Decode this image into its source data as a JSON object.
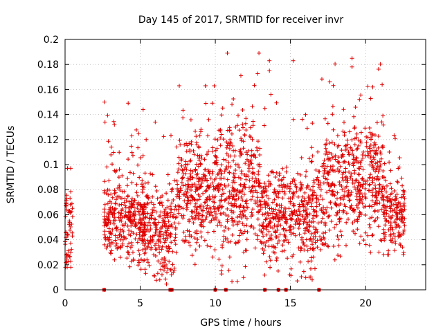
{
  "colors": {
    "points": "#e00000",
    "axis": "#000000",
    "grid": "#b8b8b8"
  },
  "chart_data": {
    "type": "scatter",
    "title": "Day 145 of 2017, SRMTID for receiver invr",
    "xlabel": "GPS time / hours",
    "ylabel": "SRMTID / TECUs",
    "xlim": [
      0,
      24
    ],
    "ylim": [
      0,
      0.2
    ],
    "xticks": [
      0,
      5,
      10,
      15,
      20
    ],
    "xtick_labels": [
      "0",
      "5",
      "10",
      "15",
      "20"
    ],
    "yticks": [
      0,
      0.02,
      0.04,
      0.06,
      0.08,
      0.1,
      0.12,
      0.14,
      0.16,
      0.18,
      0.2
    ],
    "ytick_labels": [
      "0",
      "0.02",
      "0.04",
      "0.06",
      "0.08",
      "0.1",
      "0.12",
      "0.14",
      "0.16",
      "0.18",
      "0.2"
    ],
    "grid": true,
    "marker": "+",
    "series": [
      {
        "name": "SRMTID",
        "segments": [
          {
            "x_range": [
              0.0,
              0.5
            ],
            "mean": 0.045,
            "spread": 0.018,
            "min": 0.018,
            "max": 0.097,
            "count": 60
          },
          {
            "x_range": [
              2.6,
              5.3
            ],
            "mean": 0.055,
            "spread": 0.018,
            "min": 0.014,
            "max": 0.15,
            "count": 330
          },
          {
            "x_range": [
              5.0,
              7.4
            ],
            "mean": 0.045,
            "spread": 0.018,
            "min": 0.0,
            "max": 0.134,
            "count": 260
          },
          {
            "x_range": [
              7.4,
              10.0
            ],
            "mean": 0.075,
            "spread": 0.022,
            "min": 0.0,
            "max": 0.163,
            "count": 320
          },
          {
            "x_range": [
              10.0,
              13.0
            ],
            "mean": 0.08,
            "spread": 0.025,
            "min": 0.0,
            "max": 0.189,
            "count": 370
          },
          {
            "x_range": [
              13.0,
              17.2
            ],
            "mean": 0.06,
            "spread": 0.02,
            "min": 0.0,
            "max": 0.183,
            "count": 470
          },
          {
            "x_range": [
              17.2,
              21.2
            ],
            "mean": 0.085,
            "spread": 0.022,
            "min": 0.02,
            "max": 0.185,
            "count": 480
          },
          {
            "x_range": [
              21.2,
              22.6
            ],
            "mean": 0.06,
            "spread": 0.016,
            "min": 0.028,
            "max": 0.132,
            "count": 170
          }
        ],
        "outliers": [
          {
            "x": 10.8,
            "y": 0.189
          },
          {
            "x": 13.6,
            "y": 0.183
          },
          {
            "x": 13.6,
            "y": 0.175
          },
          {
            "x": 19.1,
            "y": 0.185
          },
          {
            "x": 19.1,
            "y": 0.178
          },
          {
            "x": 11.7,
            "y": 0.171
          },
          {
            "x": 7.6,
            "y": 0.163
          },
          {
            "x": 4.2,
            "y": 0.149
          },
          {
            "x": 13.7,
            "y": 0.156
          },
          {
            "x": 13.3,
            "y": 0.145
          },
          {
            "x": 9.8,
            "y": 0.149
          },
          {
            "x": 6.0,
            "y": 0.134
          }
        ],
        "zero_points_x": [
          2.6,
          7.0,
          7.1,
          10.0,
          10.7,
          13.3,
          14.2,
          14.7,
          16.9
        ]
      }
    ]
  }
}
